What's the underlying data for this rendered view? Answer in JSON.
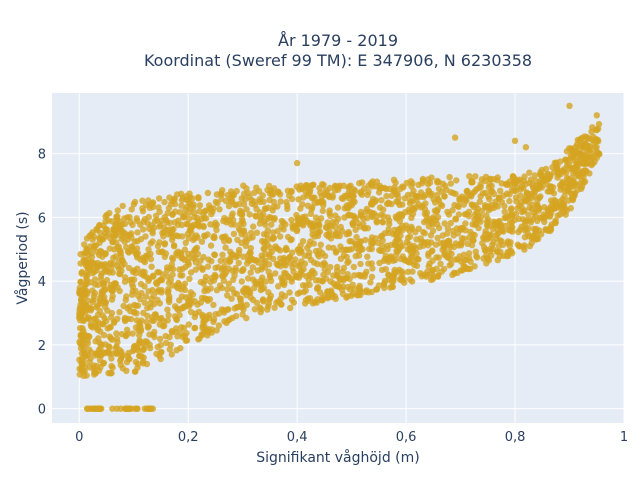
{
  "title": {
    "line1": "År 1979 - 2019",
    "line2": "Koordinat (Sweref 99 TM): E 347906, N 6230358"
  },
  "chart_data": {
    "type": "scatter",
    "xlabel": "Signifikant våghöjd (m)",
    "ylabel": "Vågperiod (s)",
    "xlim": [
      -0.05,
      1.0
    ],
    "ylim": [
      -0.45,
      9.9
    ],
    "xticks": [
      0,
      0.2,
      0.4,
      0.6,
      0.8,
      1
    ],
    "xtick_labels": [
      "0",
      "0,2",
      "0,4",
      "0,6",
      "0,8",
      "1"
    ],
    "yticks": [
      0,
      2,
      4,
      6,
      8
    ],
    "ytick_labels": [
      "0",
      "2",
      "4",
      "6",
      "8"
    ],
    "grid": true,
    "background": "#e5ecf6",
    "marker_color": "#d4a421",
    "marker_opacity": 0.8,
    "point_cloud_envelope": {
      "description_x": [
        0.0,
        0.05,
        0.1,
        0.2,
        0.3,
        0.4,
        0.5,
        0.6,
        0.7,
        0.8,
        0.85,
        0.9,
        0.95
      ],
      "upper_y": [
        5.0,
        6.2,
        6.5,
        6.8,
        7.0,
        7.0,
        7.1,
        7.2,
        7.3,
        7.3,
        7.5,
        8.2,
        9.0
      ],
      "lower_y": [
        1.0,
        1.1,
        1.1,
        2.0,
        2.8,
        3.2,
        3.5,
        3.9,
        4.2,
        4.8,
        5.3,
        6.2,
        7.8
      ]
    },
    "zero_period_points": {
      "x_range": [
        0.01,
        0.14
      ],
      "y": 0
    },
    "outliers": [
      {
        "x": 0.9,
        "y": 9.5
      },
      {
        "x": 0.95,
        "y": 9.2
      },
      {
        "x": 0.4,
        "y": 7.7
      },
      {
        "x": 0.69,
        "y": 8.5
      },
      {
        "x": 0.8,
        "y": 8.4
      },
      {
        "x": 0.82,
        "y": 8.2
      },
      {
        "x": 0.13,
        "y": 1.9
      },
      {
        "x": 0.17,
        "y": 1.7
      }
    ]
  }
}
